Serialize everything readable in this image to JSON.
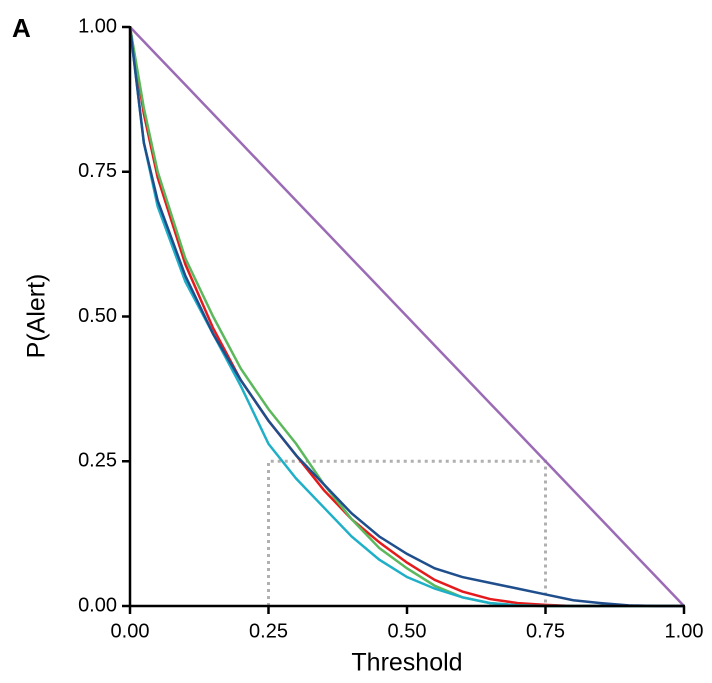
{
  "chart_data": {
    "type": "line",
    "panel_label": "A",
    "xlabel": "Threshold",
    "ylabel": "P(Alert)",
    "x": [
      0,
      0.025,
      0.05,
      0.1,
      0.15,
      0.2,
      0.25,
      0.3,
      0.35,
      0.4,
      0.45,
      0.5,
      0.55,
      0.6,
      0.65,
      0.7,
      0.75,
      0.8,
      0.85,
      0.9,
      0.95,
      1
    ],
    "series": [
      {
        "color": "#9b6bb5",
        "values": [
          1,
          0.975,
          0.95,
          0.9,
          0.85,
          0.8,
          0.75,
          0.7,
          0.65,
          0.6,
          0.55,
          0.5,
          0.45,
          0.4,
          0.35,
          0.3,
          0.25,
          0.2,
          0.15,
          0.1,
          0.05,
          0
        ]
      },
      {
        "color": "#e41a1c",
        "values": [
          1,
          0.85,
          0.74,
          0.59,
          0.48,
          0.39,
          0.32,
          0.26,
          0.2,
          0.15,
          0.11,
          0.075,
          0.045,
          0.025,
          0.012,
          0.005,
          0.002,
          0,
          0,
          0,
          0,
          0
        ]
      },
      {
        "color": "#5cb85c",
        "values": [
          1,
          0.86,
          0.75,
          0.6,
          0.5,
          0.41,
          0.34,
          0.28,
          0.21,
          0.15,
          0.1,
          0.065,
          0.035,
          0.015,
          0.005,
          0.001,
          0,
          0,
          0,
          0,
          0,
          0
        ]
      },
      {
        "color": "#1fb0c8",
        "values": [
          1,
          0.8,
          0.69,
          0.56,
          0.47,
          0.38,
          0.28,
          0.22,
          0.17,
          0.12,
          0.08,
          0.05,
          0.03,
          0.015,
          0.005,
          0.001,
          0,
          0,
          0,
          0,
          0,
          0
        ]
      },
      {
        "color": "#1f4e8c",
        "values": [
          1,
          0.8,
          0.7,
          0.57,
          0.47,
          0.39,
          0.32,
          0.26,
          0.21,
          0.16,
          0.12,
          0.09,
          0.065,
          0.05,
          0.04,
          0.03,
          0.02,
          0.01,
          0.005,
          0.001,
          0,
          0
        ]
      }
    ],
    "guide_box": {
      "x0": 0.25,
      "x1": 0.75,
      "y0": 0,
      "y1": 0.25,
      "color": "#b0b0b0"
    },
    "xlim": [
      0,
      1
    ],
    "ylim": [
      0,
      1
    ],
    "xticks": [
      {
        "value": 0,
        "label": "0.00"
      },
      {
        "value": 0.25,
        "label": "0.25"
      },
      {
        "value": 0.5,
        "label": "0.50"
      },
      {
        "value": 0.75,
        "label": "0.75"
      },
      {
        "value": 1,
        "label": "1.00"
      }
    ],
    "yticks": [
      {
        "value": 0,
        "label": "0.00"
      },
      {
        "value": 0.25,
        "label": "0.25"
      },
      {
        "value": 0.5,
        "label": "0.50"
      },
      {
        "value": 0.75,
        "label": "0.75"
      },
      {
        "value": 1,
        "label": "1.00"
      }
    ]
  }
}
